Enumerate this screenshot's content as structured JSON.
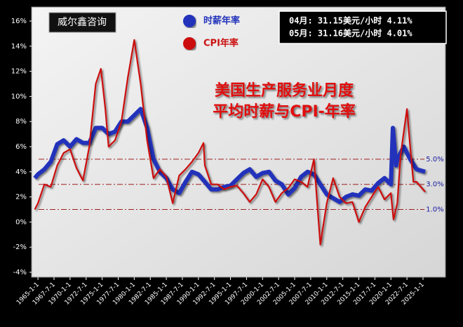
{
  "chart_data": {
    "type": "line",
    "title_lines": [
      "美国生产服务业月度",
      "平均时薪与CPI-年率"
    ],
    "watermark": "威尔鑫咨询",
    "info_lines": [
      "04月: 31.15美元/小时 4.11%",
      "05月: 31.16美元/小时 4.01%"
    ],
    "series": [
      {
        "name": "时薪年率",
        "color": "#2233bb",
        "x": [
          1964.5,
          1965,
          1966,
          1967,
          1968,
          1969,
          1970,
          1971,
          1972,
          1973,
          1974,
          1975,
          1976,
          1977,
          1978,
          1979,
          1980,
          1981,
          1982,
          1983,
          1984,
          1985,
          1986,
          1987,
          1988,
          1989,
          1990,
          1991,
          1992,
          1993,
          1994,
          1995,
          1996,
          1997,
          1998,
          1999,
          2000,
          2001,
          2002,
          2003,
          2004,
          2005,
          2006,
          2007,
          2008,
          2009,
          2010,
          2011,
          2012,
          2013,
          2014,
          2015,
          2016,
          2017,
          2018,
          2019,
          2020,
          2020.3,
          2020.8,
          2021,
          2022,
          2023,
          2024,
          2025.33
        ],
        "values": [
          3.5,
          3.8,
          4.2,
          4.8,
          6.2,
          6.5,
          6.0,
          6.6,
          6.3,
          6.3,
          7.5,
          7.5,
          7.0,
          7.2,
          8.0,
          8.0,
          8.5,
          9.0,
          7.5,
          5.0,
          4.0,
          3.5,
          2.6,
          2.3,
          3.2,
          4.0,
          3.8,
          3.2,
          2.6,
          2.6,
          2.8,
          2.9,
          3.4,
          3.9,
          4.2,
          3.6,
          3.9,
          4.0,
          3.3,
          3.0,
          2.2,
          2.7,
          3.6,
          4.0,
          3.8,
          3.0,
          2.2,
          1.9,
          1.6,
          2.0,
          2.2,
          2.1,
          2.6,
          2.5,
          3.1,
          3.5,
          3.0,
          7.5,
          4.5,
          5.0,
          6.0,
          5.0,
          4.2,
          4.0
        ]
      },
      {
        "name": "CPI年率",
        "color": "#cc1111",
        "x": [
          1964.5,
          1965,
          1966,
          1967,
          1968,
          1969,
          1970,
          1971,
          1972,
          1973,
          1974,
          1974.8,
          1975.5,
          1976,
          1977,
          1978,
          1979,
          1980,
          1981,
          1982,
          1983,
          1984,
          1985,
          1986,
          1987,
          1988,
          1989,
          1990,
          1990.8,
          1991,
          1992,
          1993,
          1994,
          1995,
          1996,
          1997,
          1998,
          1999,
          2000,
          2001,
          2002,
          2003,
          2004,
          2005,
          2006,
          2007,
          2008,
          2009,
          2010,
          2011,
          2012,
          2013,
          2014,
          2015,
          2016,
          2017,
          2018,
          2019,
          2020,
          2020.4,
          2021,
          2021.5,
          2022.5,
          2023,
          2023.5,
          2024,
          2024.5,
          2025.33
        ],
        "values": [
          1.0,
          1.5,
          3.0,
          2.8,
          4.5,
          5.5,
          5.8,
          4.3,
          3.3,
          6.0,
          11.0,
          12.2,
          9.0,
          6.0,
          6.5,
          8.0,
          11.5,
          14.5,
          11.0,
          6.5,
          3.5,
          4.2,
          3.6,
          1.5,
          3.7,
          4.2,
          4.8,
          5.5,
          6.3,
          4.5,
          3.0,
          3.0,
          2.6,
          2.8,
          2.9,
          2.3,
          1.6,
          2.2,
          3.4,
          2.8,
          1.6,
          2.3,
          2.7,
          3.4,
          3.2,
          2.8,
          5.0,
          -1.8,
          1.5,
          3.5,
          2.0,
          1.5,
          1.6,
          0.0,
          1.2,
          2.0,
          2.8,
          1.8,
          2.3,
          0.2,
          1.5,
          5.3,
          9.0,
          6.0,
          3.2,
          3.2,
          2.9,
          2.4
        ]
      }
    ],
    "reference_lines": [
      {
        "value": 5,
        "label": "5.0%"
      },
      {
        "value": 3,
        "label": "3.0%"
      },
      {
        "value": 1,
        "label": "1.0%"
      }
    ],
    "xlim": [
      1964,
      2028.5
    ],
    "xticks": [
      {
        "value": 1965,
        "label": "1965-1-1"
      },
      {
        "value": 1967.5,
        "label": "1967-7-1"
      },
      {
        "value": 1970,
        "label": "1970-1-1"
      },
      {
        "value": 1972.5,
        "label": "1972-7-1"
      },
      {
        "value": 1975,
        "label": "1975-1-1"
      },
      {
        "value": 1977.5,
        "label": "1977-7-1"
      },
      {
        "value": 1980,
        "label": "1980-1-1"
      },
      {
        "value": 1982.5,
        "label": "1982-7-1"
      },
      {
        "value": 1985,
        "label": "1985-1-1"
      },
      {
        "value": 1987.5,
        "label": "1987-7-1"
      },
      {
        "value": 1990,
        "label": "1990-1-1"
      },
      {
        "value": 1992.5,
        "label": "1992-7-1"
      },
      {
        "value": 1995,
        "label": "1995-1-1"
      },
      {
        "value": 1997.5,
        "label": "1997-7-1"
      },
      {
        "value": 2000,
        "label": "2000-1-1"
      },
      {
        "value": 2002.5,
        "label": "2002-7-1"
      },
      {
        "value": 2005,
        "label": "2005-1-1"
      },
      {
        "value": 2007.5,
        "label": "2007-7-1"
      },
      {
        "value": 2010,
        "label": "2010-1-1"
      },
      {
        "value": 2012.5,
        "label": "2012-7-1"
      },
      {
        "value": 2015,
        "label": "2015-1-1"
      },
      {
        "value": 2017.5,
        "label": "2017-7-1"
      },
      {
        "value": 2020,
        "label": "2020-1-1"
      },
      {
        "value": 2022.5,
        "label": "2022-7-1"
      },
      {
        "value": 2025,
        "label": "2025-1-1"
      }
    ],
    "ylim": [
      -4,
      16
    ],
    "yticks": [
      {
        "value": -4,
        "label": "-4%"
      },
      {
        "value": -2,
        "label": "-2%"
      },
      {
        "value": 0,
        "label": "0%"
      },
      {
        "value": 2,
        "label": "2%"
      },
      {
        "value": 4,
        "label": "4%"
      },
      {
        "value": 6,
        "label": "6%"
      },
      {
        "value": 8,
        "label": "8%"
      },
      {
        "value": 10,
        "label": "10%"
      },
      {
        "value": 12,
        "label": "12%"
      },
      {
        "value": 14,
        "label": "14%"
      },
      {
        "value": 16,
        "label": "16%"
      }
    ],
    "grid": false
  }
}
